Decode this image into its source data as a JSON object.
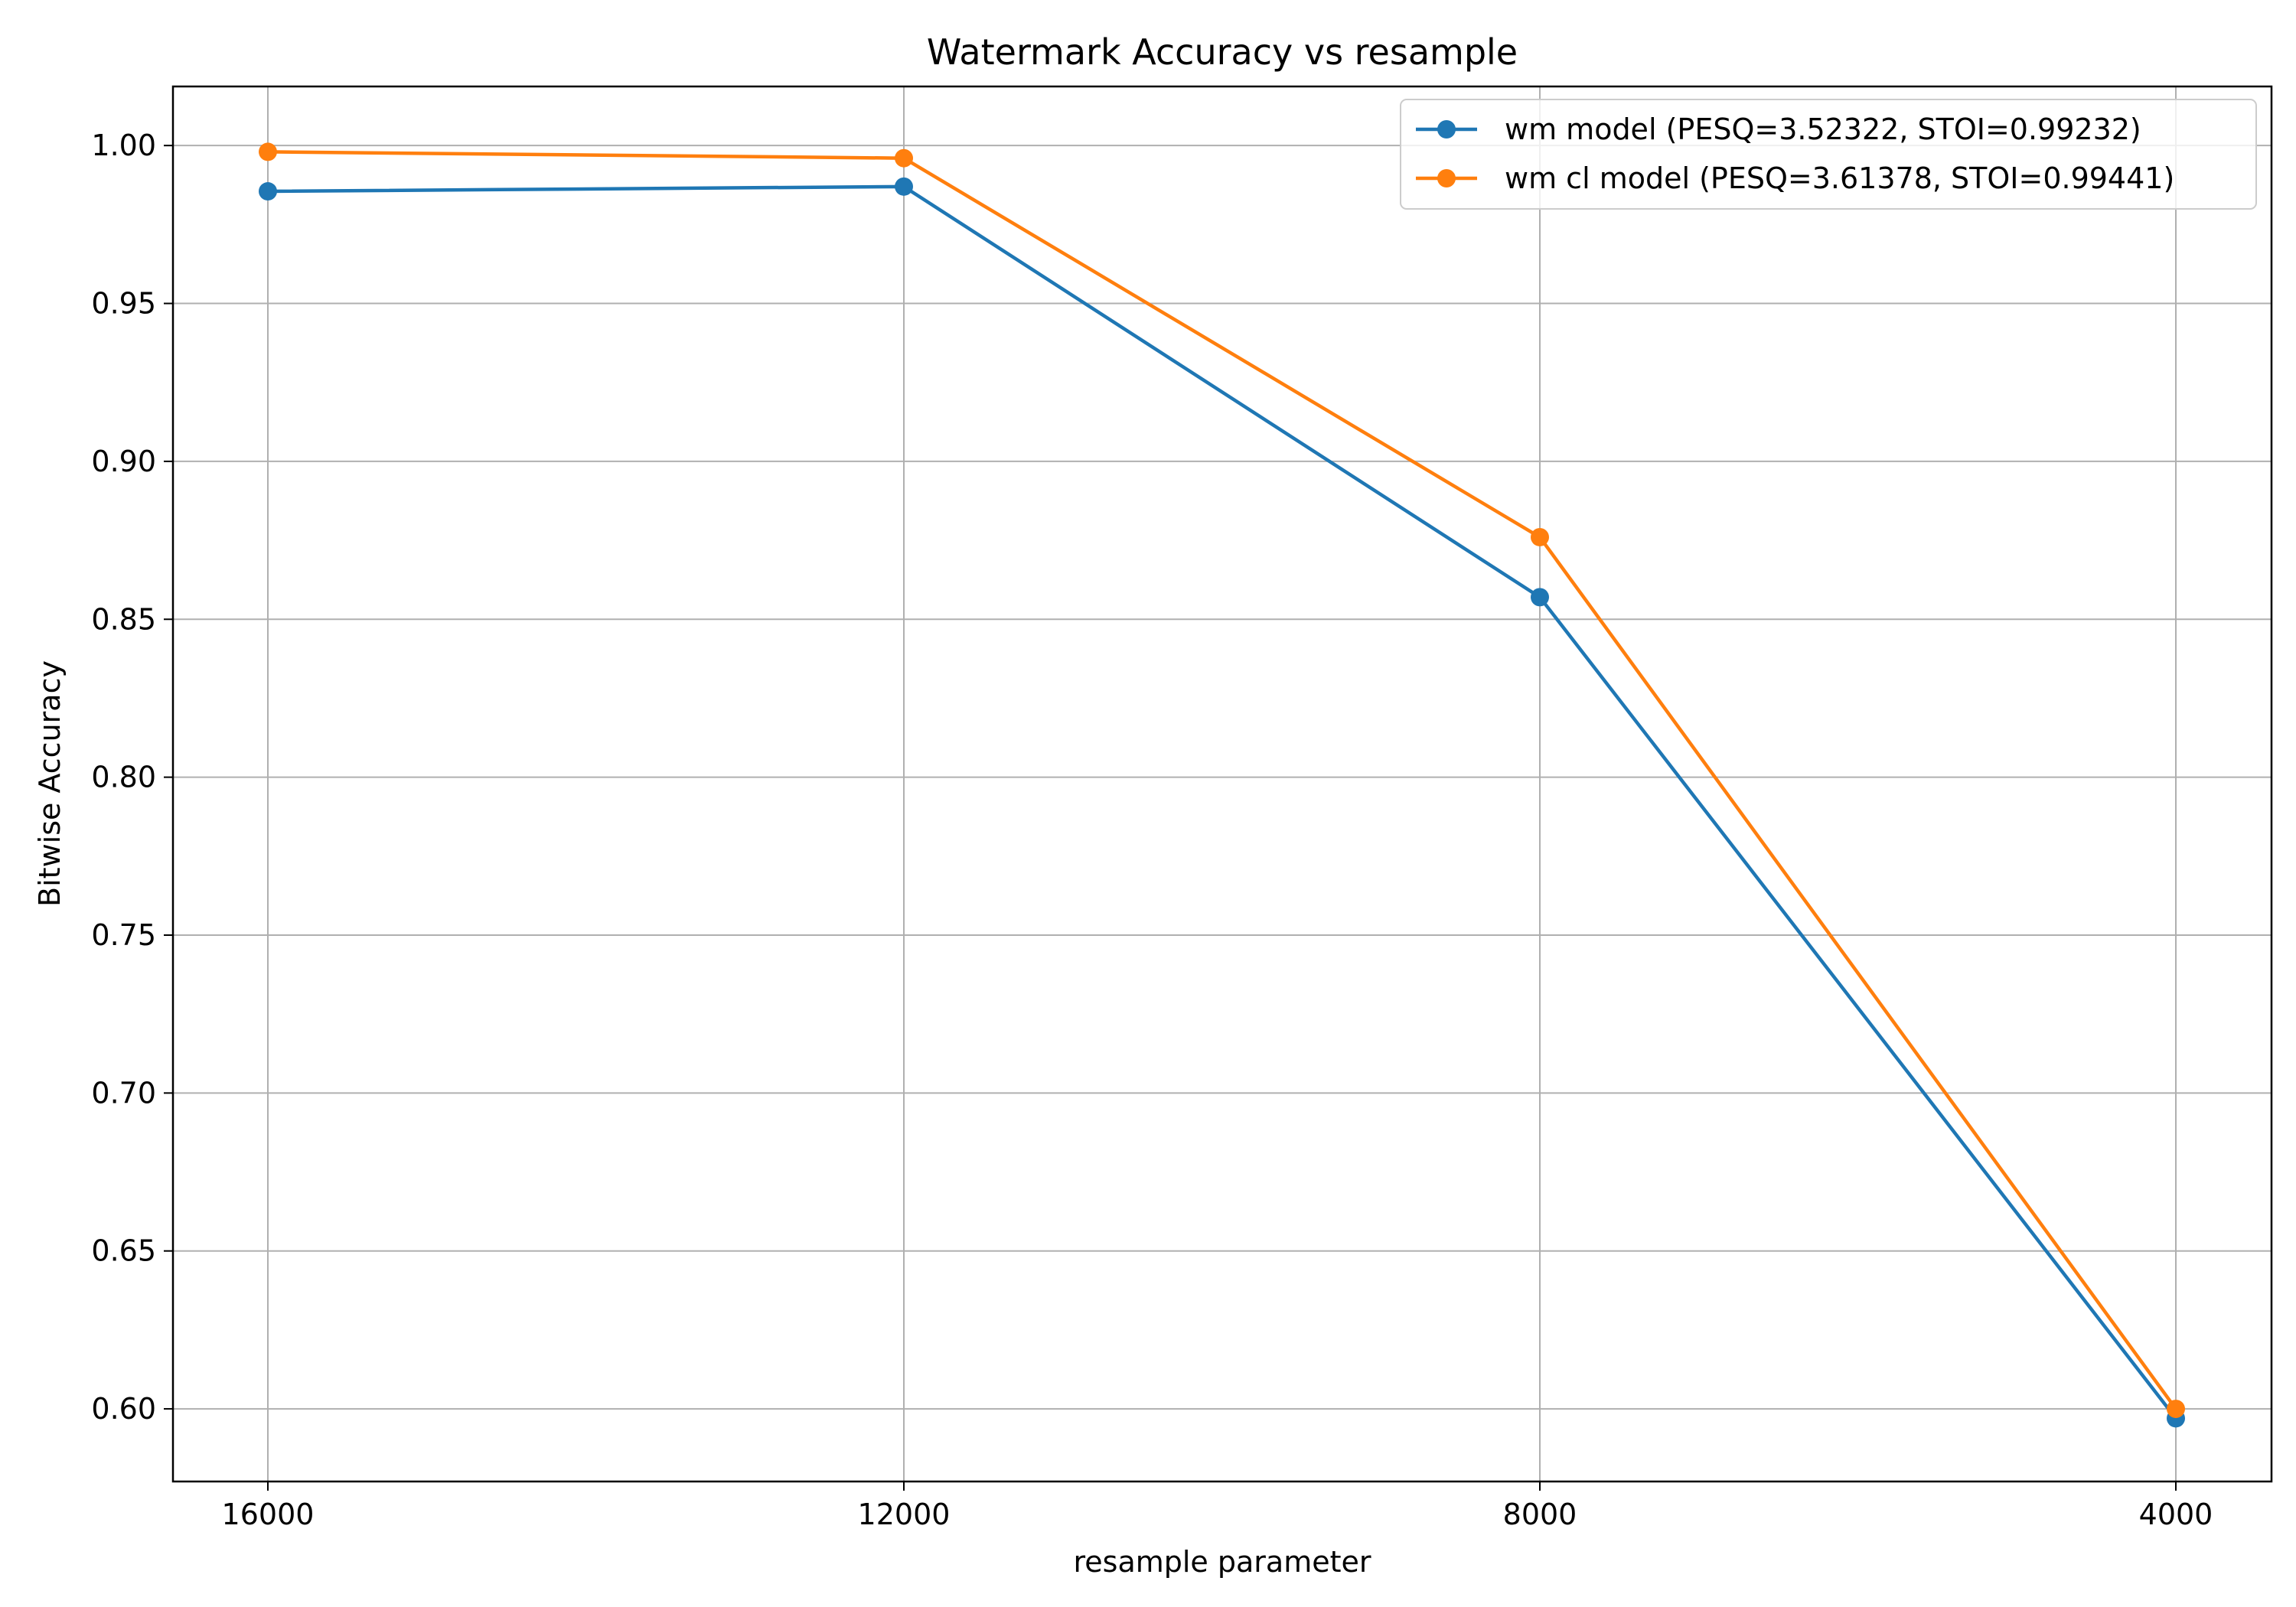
{
  "chart_data": {
    "type": "line",
    "title": "Watermark Accuracy vs resample",
    "xlabel": "resample parameter",
    "ylabel": "Bitwise Accuracy",
    "categories": [
      "16000",
      "12000",
      "8000",
      "4000"
    ],
    "ylim": [
      0.577,
      1.0187
    ],
    "yticks": [
      "0.60",
      "0.65",
      "0.70",
      "0.75",
      "0.80",
      "0.85",
      "0.90",
      "0.95",
      "1.00"
    ],
    "grid": true,
    "legend_position": "top-right",
    "series": [
      {
        "name": "wm model (PESQ=3.52322, STOI=0.99232)",
        "color": "#1f77b4",
        "marker": "circle",
        "values": [
          0.9855,
          0.987,
          0.857,
          0.597
        ]
      },
      {
        "name": "wm cl model (PESQ=3.61378, STOI=0.99441)",
        "color": "#ff7f0e",
        "marker": "circle",
        "values": [
          0.998,
          0.996,
          0.876,
          0.6
        ]
      }
    ]
  }
}
